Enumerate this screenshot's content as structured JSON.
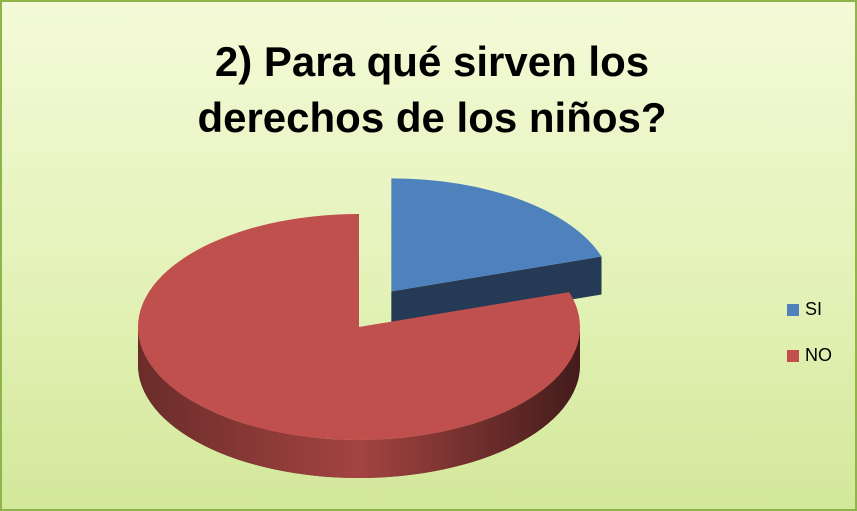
{
  "chart_data": {
    "type": "pie",
    "title": "2)  Para qué sirven los derechos de los niños?",
    "categories": [
      "SI",
      "NO"
    ],
    "values": [
      20,
      80
    ],
    "colors": [
      "#4f81bd",
      "#c0504d"
    ],
    "exploded": [
      true,
      false
    ],
    "legend": "right",
    "three_d": true
  }
}
